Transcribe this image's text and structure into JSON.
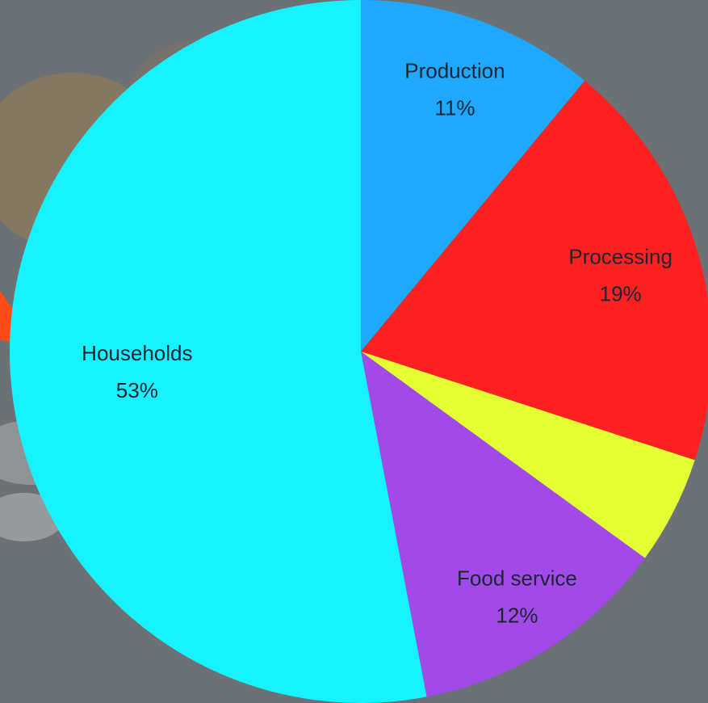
{
  "chart_data": {
    "type": "pie",
    "categories": [
      "Production",
      "Processing",
      null,
      "Food service",
      "Households"
    ],
    "values": [
      11,
      19,
      5,
      12,
      53
    ],
    "value_labels": [
      "11%",
      "19%",
      null,
      "12%",
      "53%"
    ],
    "colors": [
      "#1ea8ff",
      "#ff2121",
      "#e4ff33",
      "#a14ae8",
      "#17f2ff"
    ]
  }
}
